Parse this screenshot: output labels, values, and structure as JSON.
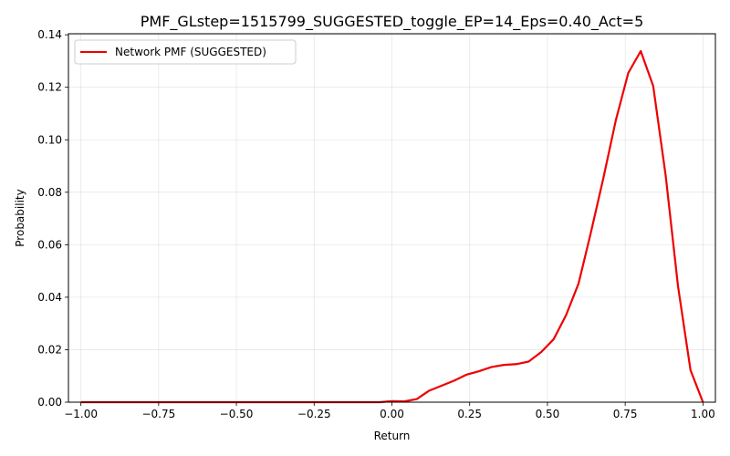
{
  "chart_data": {
    "type": "line",
    "title": "PMF_GLstep=1515799_SUGGESTED_toggle_EP=14_Eps=0.40_Act=5",
    "xlabel": "Return",
    "ylabel": "Probability",
    "xlim": [
      -1.04,
      1.04
    ],
    "ylim": [
      0,
      0.1404
    ],
    "xticks": [
      -1.0,
      -0.75,
      -0.5,
      -0.25,
      0.0,
      0.25,
      0.5,
      0.75,
      1.0
    ],
    "xtick_labels": [
      "−1.00",
      "−0.75",
      "−0.50",
      "−0.25",
      "0.00",
      "0.25",
      "0.50",
      "0.75",
      "1.00"
    ],
    "yticks": [
      0.0,
      0.02,
      0.04,
      0.06,
      0.08,
      0.1,
      0.12,
      0.14
    ],
    "ytick_labels": [
      "0.00",
      "0.02",
      "0.04",
      "0.06",
      "0.08",
      "0.10",
      "0.12",
      "0.14"
    ],
    "grid": true,
    "legend_position": "top-left",
    "series": [
      {
        "name": "Network PMF (SUGGESTED)",
        "color": "#ee0000",
        "x": [
          -1.0,
          -0.96,
          -0.92,
          -0.88,
          -0.84,
          -0.8,
          -0.76,
          -0.72,
          -0.68,
          -0.64,
          -0.6,
          -0.56,
          -0.52,
          -0.48,
          -0.44,
          -0.4,
          -0.36,
          -0.32,
          -0.28,
          -0.24,
          -0.2,
          -0.16,
          -0.12,
          -0.08,
          -0.04,
          0.0,
          0.04,
          0.08,
          0.12,
          0.16,
          0.2,
          0.24,
          0.28,
          0.32,
          0.36,
          0.4,
          0.44,
          0.48,
          0.52,
          0.56,
          0.6,
          0.64,
          0.68,
          0.72,
          0.76,
          0.8,
          0.84,
          0.88,
          0.92,
          0.96,
          1.0
        ],
        "y": [
          0.0,
          0.0,
          0.0,
          0.0,
          0.0,
          0.0,
          0.0,
          0.0,
          0.0,
          0.0,
          0.0,
          0.0,
          0.0,
          0.0,
          0.0,
          0.0,
          0.0,
          0.0,
          0.0,
          0.0,
          0.0,
          0.0,
          0.0,
          0.0,
          0.0,
          0.0004,
          0.0003,
          0.0012,
          0.0044,
          0.0063,
          0.0082,
          0.0105,
          0.0118,
          0.0134,
          0.0142,
          0.0145,
          0.0155,
          0.0191,
          0.024,
          0.0332,
          0.0452,
          0.0648,
          0.0855,
          0.1075,
          0.1255,
          0.1338,
          0.1205,
          0.0865,
          0.044,
          0.0122,
          0.0
        ]
      }
    ]
  }
}
